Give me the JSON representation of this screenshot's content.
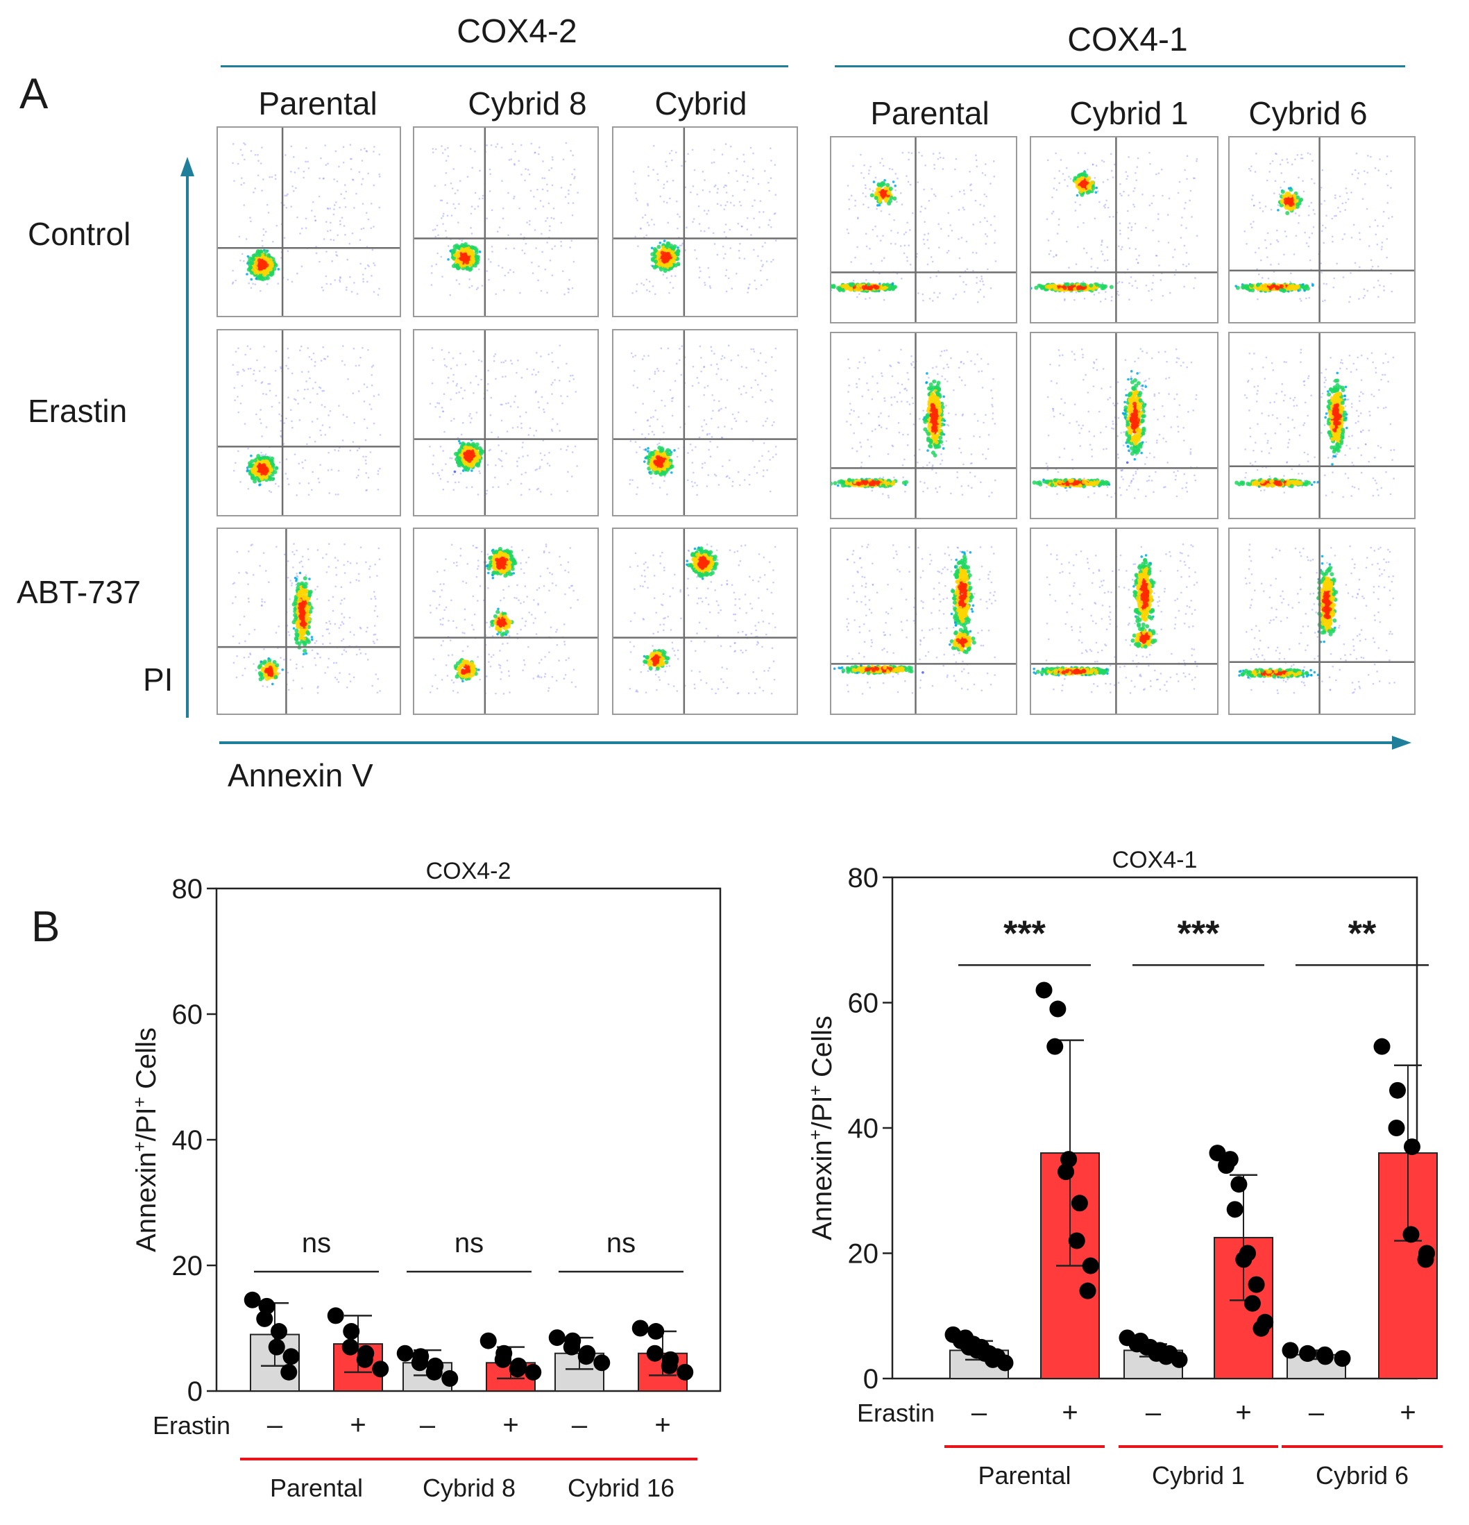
{
  "panel_a": {
    "letter": "A",
    "groups": [
      {
        "title": "COX4-2",
        "columns": [
          "Parental",
          "Cybrid 8",
          "Cybrid"
        ]
      },
      {
        "title": "COX4-1",
        "columns": [
          "Parental",
          "Cybrid 1",
          "Cybrid 6"
        ]
      }
    ],
    "rows": [
      "Control",
      "Erastin",
      "ABT-737"
    ],
    "y_axis_label": "PI",
    "x_axis_label": "Annexin V",
    "colors": {
      "axis": "#1f7f9a",
      "gate": "#6e6e6e"
    }
  },
  "panel_b": {
    "letter": "B"
  },
  "chart_data": [
    {
      "type": "bar",
      "title": "COX4-2",
      "ylabel": "Annexin+/PI+ Cells",
      "ylim": [
        0,
        80
      ],
      "yticks": [
        0,
        20,
        40,
        60,
        80
      ],
      "treatment_label": "Erastin",
      "treatment_symbols": [
        "–",
        "+",
        "–",
        "+",
        "–",
        "+"
      ],
      "groups": [
        "Parental",
        "Cybrid 8",
        "Cybrid 16"
      ],
      "bar_fill": [
        "#d9d9d9",
        "#ff3b3b"
      ],
      "significance": [
        "ns",
        "ns",
        "ns"
      ],
      "bars": [
        {
          "group": "Parental",
          "erastin": "–",
          "mean": 9,
          "sd": 5,
          "points": [
            14.5,
            13.5,
            11.5,
            9.5,
            7,
            5.5,
            3
          ]
        },
        {
          "group": "Parental",
          "erastin": "+",
          "mean": 7.5,
          "sd": 4.5,
          "points": [
            12,
            9.5,
            7,
            6,
            5,
            3.5
          ]
        },
        {
          "group": "Cybrid 8",
          "erastin": "–",
          "mean": 4.5,
          "sd": 2,
          "points": [
            6,
            5.5,
            4.5,
            4,
            3,
            2
          ]
        },
        {
          "group": "Cybrid 8",
          "erastin": "+",
          "mean": 4.5,
          "sd": 2.5,
          "points": [
            8,
            6,
            5,
            4,
            3.5,
            3
          ]
        },
        {
          "group": "Cybrid 16",
          "erastin": "–",
          "mean": 6,
          "sd": 2.5,
          "points": [
            8.5,
            8,
            7,
            6,
            5.5,
            4.5
          ]
        },
        {
          "group": "Cybrid 16",
          "erastin": "+",
          "mean": 6,
          "sd": 3.5,
          "points": [
            10,
            9.5,
            6,
            5,
            4,
            3
          ]
        }
      ]
    },
    {
      "type": "bar",
      "title": "COX4-1",
      "ylabel": "Annexin+/PI+ Cells",
      "ylim": [
        0,
        80
      ],
      "yticks": [
        0,
        20,
        40,
        60,
        80
      ],
      "treatment_label": "Erastin",
      "treatment_symbols": [
        "–",
        "+",
        "–",
        "+",
        "–",
        "+"
      ],
      "groups": [
        "Parental",
        "Cybrid 1",
        "Cybrid 6"
      ],
      "bar_fill": [
        "#d9d9d9",
        "#ff3b3b"
      ],
      "significance": [
        "***",
        "***",
        "**"
      ],
      "bars": [
        {
          "group": "Parental",
          "erastin": "–",
          "mean": 4.5,
          "sd": 1.5,
          "points": [
            7,
            6.5,
            6,
            5.5,
            5,
            5,
            4.5,
            4,
            4,
            3.5,
            3,
            2.5
          ]
        },
        {
          "group": "Parental",
          "erastin": "+",
          "mean": 36,
          "sd": 18,
          "points": [
            62,
            59,
            53,
            35,
            33,
            28,
            22,
            18,
            14
          ]
        },
        {
          "group": "Cybrid 1",
          "erastin": "–",
          "mean": 4.5,
          "sd": 1,
          "points": [
            6.5,
            6,
            5.5,
            5,
            5,
            4.5,
            4,
            4,
            3.5,
            3
          ]
        },
        {
          "group": "Cybrid 1",
          "erastin": "+",
          "mean": 22.5,
          "sd": 10,
          "points": [
            36,
            35,
            34,
            31,
            27,
            20,
            19,
            15,
            12,
            9,
            8
          ]
        },
        {
          "group": "Cybrid 6",
          "erastin": "–",
          "mean": 3.8,
          "sd": 0.7,
          "points": [
            4.5,
            4,
            4,
            3.8,
            3.5,
            3.2
          ]
        },
        {
          "group": "Cybrid 6",
          "erastin": "+",
          "mean": 36,
          "sd": 14,
          "points": [
            53,
            46,
            40,
            37,
            23,
            20,
            19
          ]
        }
      ]
    }
  ]
}
